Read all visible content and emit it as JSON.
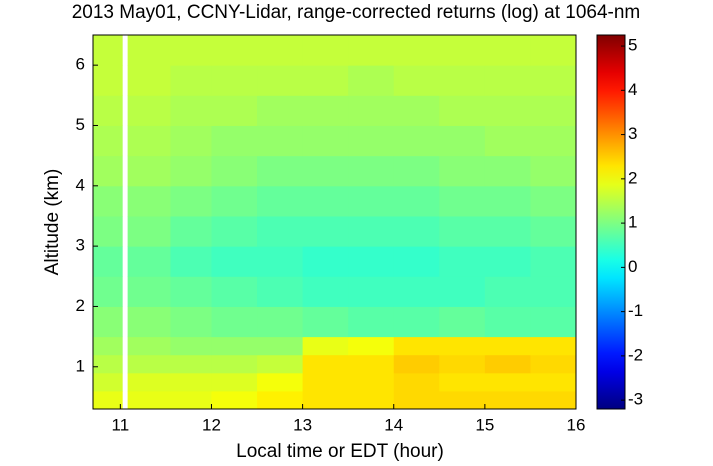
{
  "chart_data": {
    "type": "heatmap",
    "title": "2013 May01, CCNY-Lidar, range-corrected returns (log) at 1064-nm",
    "x_label": "Local time or EDT (hour)",
    "y_label": "Altitude (km)",
    "x_bins": [
      10.7,
      11.02,
      11.08,
      11.55,
      12,
      12.5,
      13,
      13.5,
      14,
      14.5,
      15,
      15.5,
      16
    ],
    "y_bins": [
      0.3,
      0.6,
      0.9,
      1.2,
      1.5,
      2.0,
      2.5,
      3.0,
      3.5,
      4.0,
      4.5,
      5.0,
      5.5,
      6.0,
      6.5
    ],
    "z": [
      [
        1.9,
        null,
        1.9,
        1.9,
        2.0,
        2.2,
        2.3,
        2.3,
        2.4,
        2.4,
        2.4,
        2.4
      ],
      [
        1.7,
        null,
        1.8,
        1.8,
        1.8,
        2.0,
        2.3,
        2.3,
        2.4,
        2.3,
        2.3,
        2.3
      ],
      [
        1.5,
        null,
        1.5,
        1.5,
        1.5,
        1.6,
        2.3,
        2.3,
        2.5,
        2.4,
        2.5,
        2.4
      ],
      [
        1.3,
        null,
        1.3,
        1.2,
        1.2,
        1.2,
        1.9,
        2.0,
        2.3,
        2.3,
        2.3,
        2.3
      ],
      [
        1.1,
        null,
        1.1,
        1.0,
        0.9,
        0.9,
        0.8,
        0.7,
        0.7,
        0.8,
        0.7,
        0.7
      ],
      [
        0.9,
        null,
        0.9,
        0.8,
        0.7,
        0.6,
        0.5,
        0.5,
        0.5,
        0.5,
        0.6,
        0.6
      ],
      [
        0.8,
        null,
        0.8,
        0.6,
        0.5,
        0.5,
        0.4,
        0.4,
        0.4,
        0.5,
        0.5,
        0.6
      ],
      [
        1.0,
        null,
        1.0,
        0.8,
        0.7,
        0.6,
        0.6,
        0.6,
        0.6,
        0.7,
        0.7,
        0.8
      ],
      [
        1.1,
        null,
        1.1,
        1.0,
        0.9,
        0.8,
        0.8,
        0.8,
        0.8,
        0.9,
        0.9,
        1.0
      ],
      [
        1.3,
        null,
        1.3,
        1.2,
        1.1,
        1.0,
        1.0,
        1.0,
        1.0,
        1.1,
        1.1,
        1.2
      ],
      [
        1.4,
        null,
        1.4,
        1.3,
        1.2,
        1.2,
        1.2,
        1.2,
        1.2,
        1.2,
        1.3,
        1.3
      ],
      [
        1.5,
        null,
        1.5,
        1.4,
        1.4,
        1.3,
        1.3,
        1.3,
        1.3,
        1.4,
        1.4,
        1.4
      ],
      [
        1.6,
        null,
        1.6,
        1.5,
        1.5,
        1.5,
        1.5,
        1.4,
        1.5,
        1.5,
        1.5,
        1.5
      ],
      [
        1.6,
        null,
        1.6,
        1.6,
        1.6,
        1.6,
        1.6,
        1.6,
        1.6,
        1.6,
        1.6,
        1.6
      ]
    ],
    "xlim": [
      10.7,
      16
    ],
    "xticks": [
      11,
      12,
      13,
      14,
      15,
      16
    ],
    "ylim": [
      0.3,
      6.5
    ],
    "yticks": [
      1,
      2,
      3,
      4,
      5,
      6
    ],
    "colormap": "jet",
    "clim": [
      -3.2,
      5.25
    ],
    "cticks": [
      -3,
      -2,
      -1,
      0,
      1,
      2,
      3,
      4,
      5
    ]
  }
}
